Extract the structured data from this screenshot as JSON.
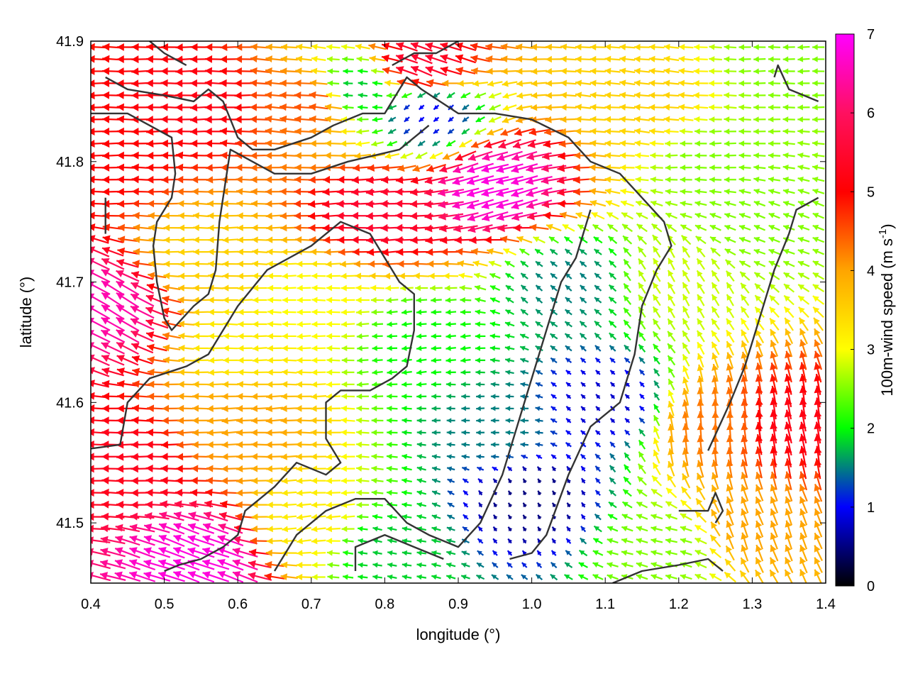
{
  "chart_data": {
    "type": "vector-field",
    "title": "",
    "xlabel": "longitude (°)",
    "ylabel": "latitude (°)",
    "colorbar_label_main": "100m-wind speed (m s",
    "colorbar_label_sup": "-1",
    "colorbar_label_close": ")",
    "xlim": [
      0.4,
      1.4
    ],
    "ylim": [
      41.45,
      41.9
    ],
    "xticks": [
      0.4,
      0.5,
      0.6,
      0.7,
      0.8,
      0.9,
      1.0,
      1.1,
      1.2,
      1.3,
      1.4
    ],
    "xtick_labels": [
      "0.4",
      "0.5",
      "0.6",
      "0.7",
      "0.8",
      "0.9",
      "1.0",
      "1.1",
      "1.2",
      "1.3",
      "1.4"
    ],
    "yticks": [
      41.5,
      41.6,
      41.7,
      41.8,
      41.9
    ],
    "ytick_labels": [
      "41.5",
      "41.6",
      "41.7",
      "41.8",
      "41.9"
    ],
    "clim": [
      0,
      7
    ],
    "cticks": [
      0,
      1,
      2,
      3,
      4,
      5,
      6,
      7
    ],
    "ctick_labels": [
      "0",
      "1",
      "2",
      "3",
      "4",
      "5",
      "6",
      "7"
    ],
    "colormap": [
      "#000000",
      "#0000ff",
      "#00ff00",
      "#ffff00",
      "#ffa500",
      "#ff0000",
      "#ff00ff"
    ],
    "grid": false,
    "vector_grid": {
      "lon_step": 0.02,
      "lat_step": 0.01
    },
    "wind_speed_regions": [
      {
        "lon": 0.55,
        "lat": 41.85,
        "speed": 5.2,
        "dir_deg": 180
      },
      {
        "lon": 0.42,
        "lat": 41.8,
        "speed": 5.0,
        "dir_deg": 180
      },
      {
        "lon": 0.7,
        "lat": 41.85,
        "speed": 4.5,
        "dir_deg": 175
      },
      {
        "lon": 0.95,
        "lat": 41.78,
        "speed": 6.8,
        "dir_deg": 195
      },
      {
        "lon": 0.8,
        "lat": 41.76,
        "speed": 5.5,
        "dir_deg": 182
      },
      {
        "lon": 0.85,
        "lat": 41.88,
        "speed": 5.5,
        "dir_deg": 160
      },
      {
        "lon": 1.15,
        "lat": 41.85,
        "speed": 3.5,
        "dir_deg": 175
      },
      {
        "lon": 1.25,
        "lat": 41.8,
        "speed": 2.5,
        "dir_deg": 180
      },
      {
        "lon": 1.35,
        "lat": 41.88,
        "speed": 2.5,
        "dir_deg": 180
      },
      {
        "lon": 0.55,
        "lat": 41.72,
        "speed": 3.5,
        "dir_deg": 180
      },
      {
        "lon": 0.7,
        "lat": 41.68,
        "speed": 3.0,
        "dir_deg": 180
      },
      {
        "lon": 0.85,
        "lat": 41.65,
        "speed": 2.0,
        "dir_deg": 185
      },
      {
        "lon": 0.95,
        "lat": 41.58,
        "speed": 1.5,
        "dir_deg": 180
      },
      {
        "lon": 1.0,
        "lat": 41.52,
        "speed": 0.5,
        "dir_deg": 120
      },
      {
        "lon": 1.1,
        "lat": 41.6,
        "speed": 0.8,
        "dir_deg": 135
      },
      {
        "lon": 1.05,
        "lat": 41.7,
        "speed": 1.5,
        "dir_deg": 140
      },
      {
        "lon": 1.2,
        "lat": 41.7,
        "speed": 2.8,
        "dir_deg": 120
      },
      {
        "lon": 1.3,
        "lat": 41.75,
        "speed": 2.5,
        "dir_deg": 160
      },
      {
        "lon": 1.25,
        "lat": 41.58,
        "speed": 4.3,
        "dir_deg": 95
      },
      {
        "lon": 1.35,
        "lat": 41.58,
        "speed": 5.2,
        "dir_deg": 100
      },
      {
        "lon": 1.3,
        "lat": 41.5,
        "speed": 4.0,
        "dir_deg": 110
      },
      {
        "lon": 1.18,
        "lat": 41.48,
        "speed": 2.5,
        "dir_deg": 165
      },
      {
        "lon": 0.45,
        "lat": 41.55,
        "speed": 5.3,
        "dir_deg": 180
      },
      {
        "lon": 0.6,
        "lat": 41.58,
        "speed": 4.0,
        "dir_deg": 182
      },
      {
        "lon": 0.7,
        "lat": 41.5,
        "speed": 3.2,
        "dir_deg": 185
      },
      {
        "lon": 0.8,
        "lat": 41.48,
        "speed": 1.8,
        "dir_deg": 170
      },
      {
        "lon": 0.55,
        "lat": 41.47,
        "speed": 6.8,
        "dir_deg": 160
      },
      {
        "lon": 0.42,
        "lat": 41.68,
        "speed": 6.5,
        "dir_deg": 150
      },
      {
        "lon": 0.6,
        "lat": 41.65,
        "speed": 3.2,
        "dir_deg": 180
      },
      {
        "lon": 0.76,
        "lat": 41.86,
        "speed": 1.8,
        "dir_deg": 175
      },
      {
        "lon": 0.86,
        "lat": 41.84,
        "speed": 1.0,
        "dir_deg": 220
      }
    ],
    "contour_lines": [
      [
        [
          0.42,
          41.87
        ],
        [
          0.45,
          41.86
        ],
        [
          0.5,
          41.855
        ],
        [
          0.54,
          41.85
        ],
        [
          0.56,
          41.86
        ],
        [
          0.58,
          41.85
        ],
        [
          0.6,
          41.82
        ],
        [
          0.62,
          41.81
        ],
        [
          0.65,
          41.81
        ],
        [
          0.7,
          41.82
        ],
        [
          0.73,
          41.83
        ],
        [
          0.77,
          41.84
        ],
        [
          0.8,
          41.84
        ],
        [
          0.83,
          41.87
        ],
        [
          0.85,
          41.86
        ],
        [
          0.9,
          41.84
        ],
        [
          0.95,
          41.84
        ],
        [
          1.0,
          41.835
        ],
        [
          1.05,
          41.82
        ],
        [
          1.08,
          41.8
        ],
        [
          1.12,
          41.79
        ],
        [
          1.15,
          41.77
        ],
        [
          1.18,
          41.75
        ],
        [
          1.19,
          41.73
        ],
        [
          1.17,
          41.71
        ],
        [
          1.15,
          41.68
        ],
        [
          1.14,
          41.64
        ],
        [
          1.12,
          41.6
        ],
        [
          1.08,
          41.58
        ],
        [
          1.05,
          41.54
        ],
        [
          1.02,
          41.49
        ],
        [
          1.0,
          41.475
        ],
        [
          0.97,
          41.47
        ]
      ],
      [
        [
          0.4,
          41.84
        ],
        [
          0.45,
          41.84
        ],
        [
          0.48,
          41.83
        ],
        [
          0.51,
          41.82
        ],
        [
          0.515,
          41.79
        ],
        [
          0.51,
          41.77
        ],
        [
          0.49,
          41.75
        ],
        [
          0.485,
          41.73
        ],
        [
          0.49,
          41.7
        ],
        [
          0.5,
          41.67
        ],
        [
          0.51,
          41.66
        ],
        [
          0.54,
          41.68
        ],
        [
          0.56,
          41.69
        ],
        [
          0.57,
          41.71
        ],
        [
          0.575,
          41.75
        ],
        [
          0.59,
          41.81
        ],
        [
          0.62,
          41.8
        ],
        [
          0.65,
          41.79
        ],
        [
          0.7,
          41.79
        ],
        [
          0.75,
          41.8
        ],
        [
          0.82,
          41.81
        ],
        [
          0.86,
          41.83
        ]
      ],
      [
        [
          0.38,
          41.56
        ],
        [
          0.44,
          41.565
        ],
        [
          0.45,
          41.6
        ],
        [
          0.48,
          41.62
        ],
        [
          0.53,
          41.63
        ],
        [
          0.56,
          41.64
        ],
        [
          0.6,
          41.68
        ],
        [
          0.64,
          41.71
        ],
        [
          0.7,
          41.73
        ],
        [
          0.74,
          41.75
        ],
        [
          0.78,
          41.74
        ],
        [
          0.8,
          41.72
        ],
        [
          0.82,
          41.7
        ],
        [
          0.84,
          41.69
        ],
        [
          0.84,
          41.66
        ],
        [
          0.83,
          41.63
        ],
        [
          0.81,
          41.62
        ],
        [
          0.78,
          41.61
        ],
        [
          0.74,
          41.61
        ],
        [
          0.72,
          41.6
        ],
        [
          0.72,
          41.57
        ],
        [
          0.74,
          41.55
        ],
        [
          0.72,
          41.54
        ],
        [
          0.68,
          41.55
        ],
        [
          0.65,
          41.53
        ],
        [
          0.63,
          41.52
        ],
        [
          0.61,
          41.51
        ],
        [
          0.6,
          41.49
        ],
        [
          0.58,
          41.48
        ],
        [
          0.55,
          41.47
        ],
        [
          0.52,
          41.465
        ],
        [
          0.5,
          41.46
        ]
      ],
      [
        [
          0.65,
          41.46
        ],
        [
          0.68,
          41.49
        ],
        [
          0.72,
          41.51
        ],
        [
          0.76,
          41.52
        ],
        [
          0.8,
          41.52
        ],
        [
          0.83,
          41.5
        ],
        [
          0.86,
          41.49
        ],
        [
          0.9,
          41.48
        ],
        [
          0.93,
          41.5
        ],
        [
          0.96,
          41.54
        ],
        [
          0.98,
          41.58
        ],
        [
          1.0,
          41.62
        ],
        [
          1.02,
          41.66
        ],
        [
          1.04,
          41.7
        ],
        [
          1.06,
          41.72
        ],
        [
          1.08,
          41.76
        ]
      ],
      [
        [
          0.76,
          41.46
        ],
        [
          0.76,
          41.48
        ],
        [
          0.8,
          41.49
        ],
        [
          0.84,
          41.48
        ],
        [
          0.88,
          41.47
        ]
      ],
      [
        [
          1.11,
          41.45
        ],
        [
          1.15,
          41.46
        ],
        [
          1.2,
          41.465
        ],
        [
          1.24,
          41.47
        ],
        [
          1.26,
          41.46
        ]
      ],
      [
        [
          1.2,
          41.51
        ],
        [
          1.24,
          41.51
        ],
        [
          1.25,
          41.525
        ],
        [
          1.26,
          41.51
        ],
        [
          1.25,
          41.5
        ]
      ],
      [
        [
          1.24,
          41.56
        ],
        [
          1.27,
          41.6
        ],
        [
          1.29,
          41.63
        ],
        [
          1.31,
          41.67
        ],
        [
          1.33,
          41.71
        ],
        [
          1.35,
          41.74
        ],
        [
          1.36,
          41.76
        ],
        [
          1.39,
          41.77
        ]
      ],
      [
        [
          1.33,
          41.87
        ],
        [
          1.335,
          41.88
        ],
        [
          1.35,
          41.86
        ],
        [
          1.37,
          41.855
        ],
        [
          1.39,
          41.85
        ]
      ],
      [
        [
          0.81,
          41.88
        ],
        [
          0.84,
          41.89
        ],
        [
          0.87,
          41.89
        ],
        [
          0.9,
          41.9
        ]
      ],
      [
        [
          0.42,
          41.77
        ],
        [
          0.42,
          41.75
        ],
        [
          0.42,
          41.74
        ]
      ],
      [
        [
          0.48,
          41.9
        ],
        [
          0.5,
          41.89
        ],
        [
          0.53,
          41.88
        ]
      ]
    ]
  }
}
